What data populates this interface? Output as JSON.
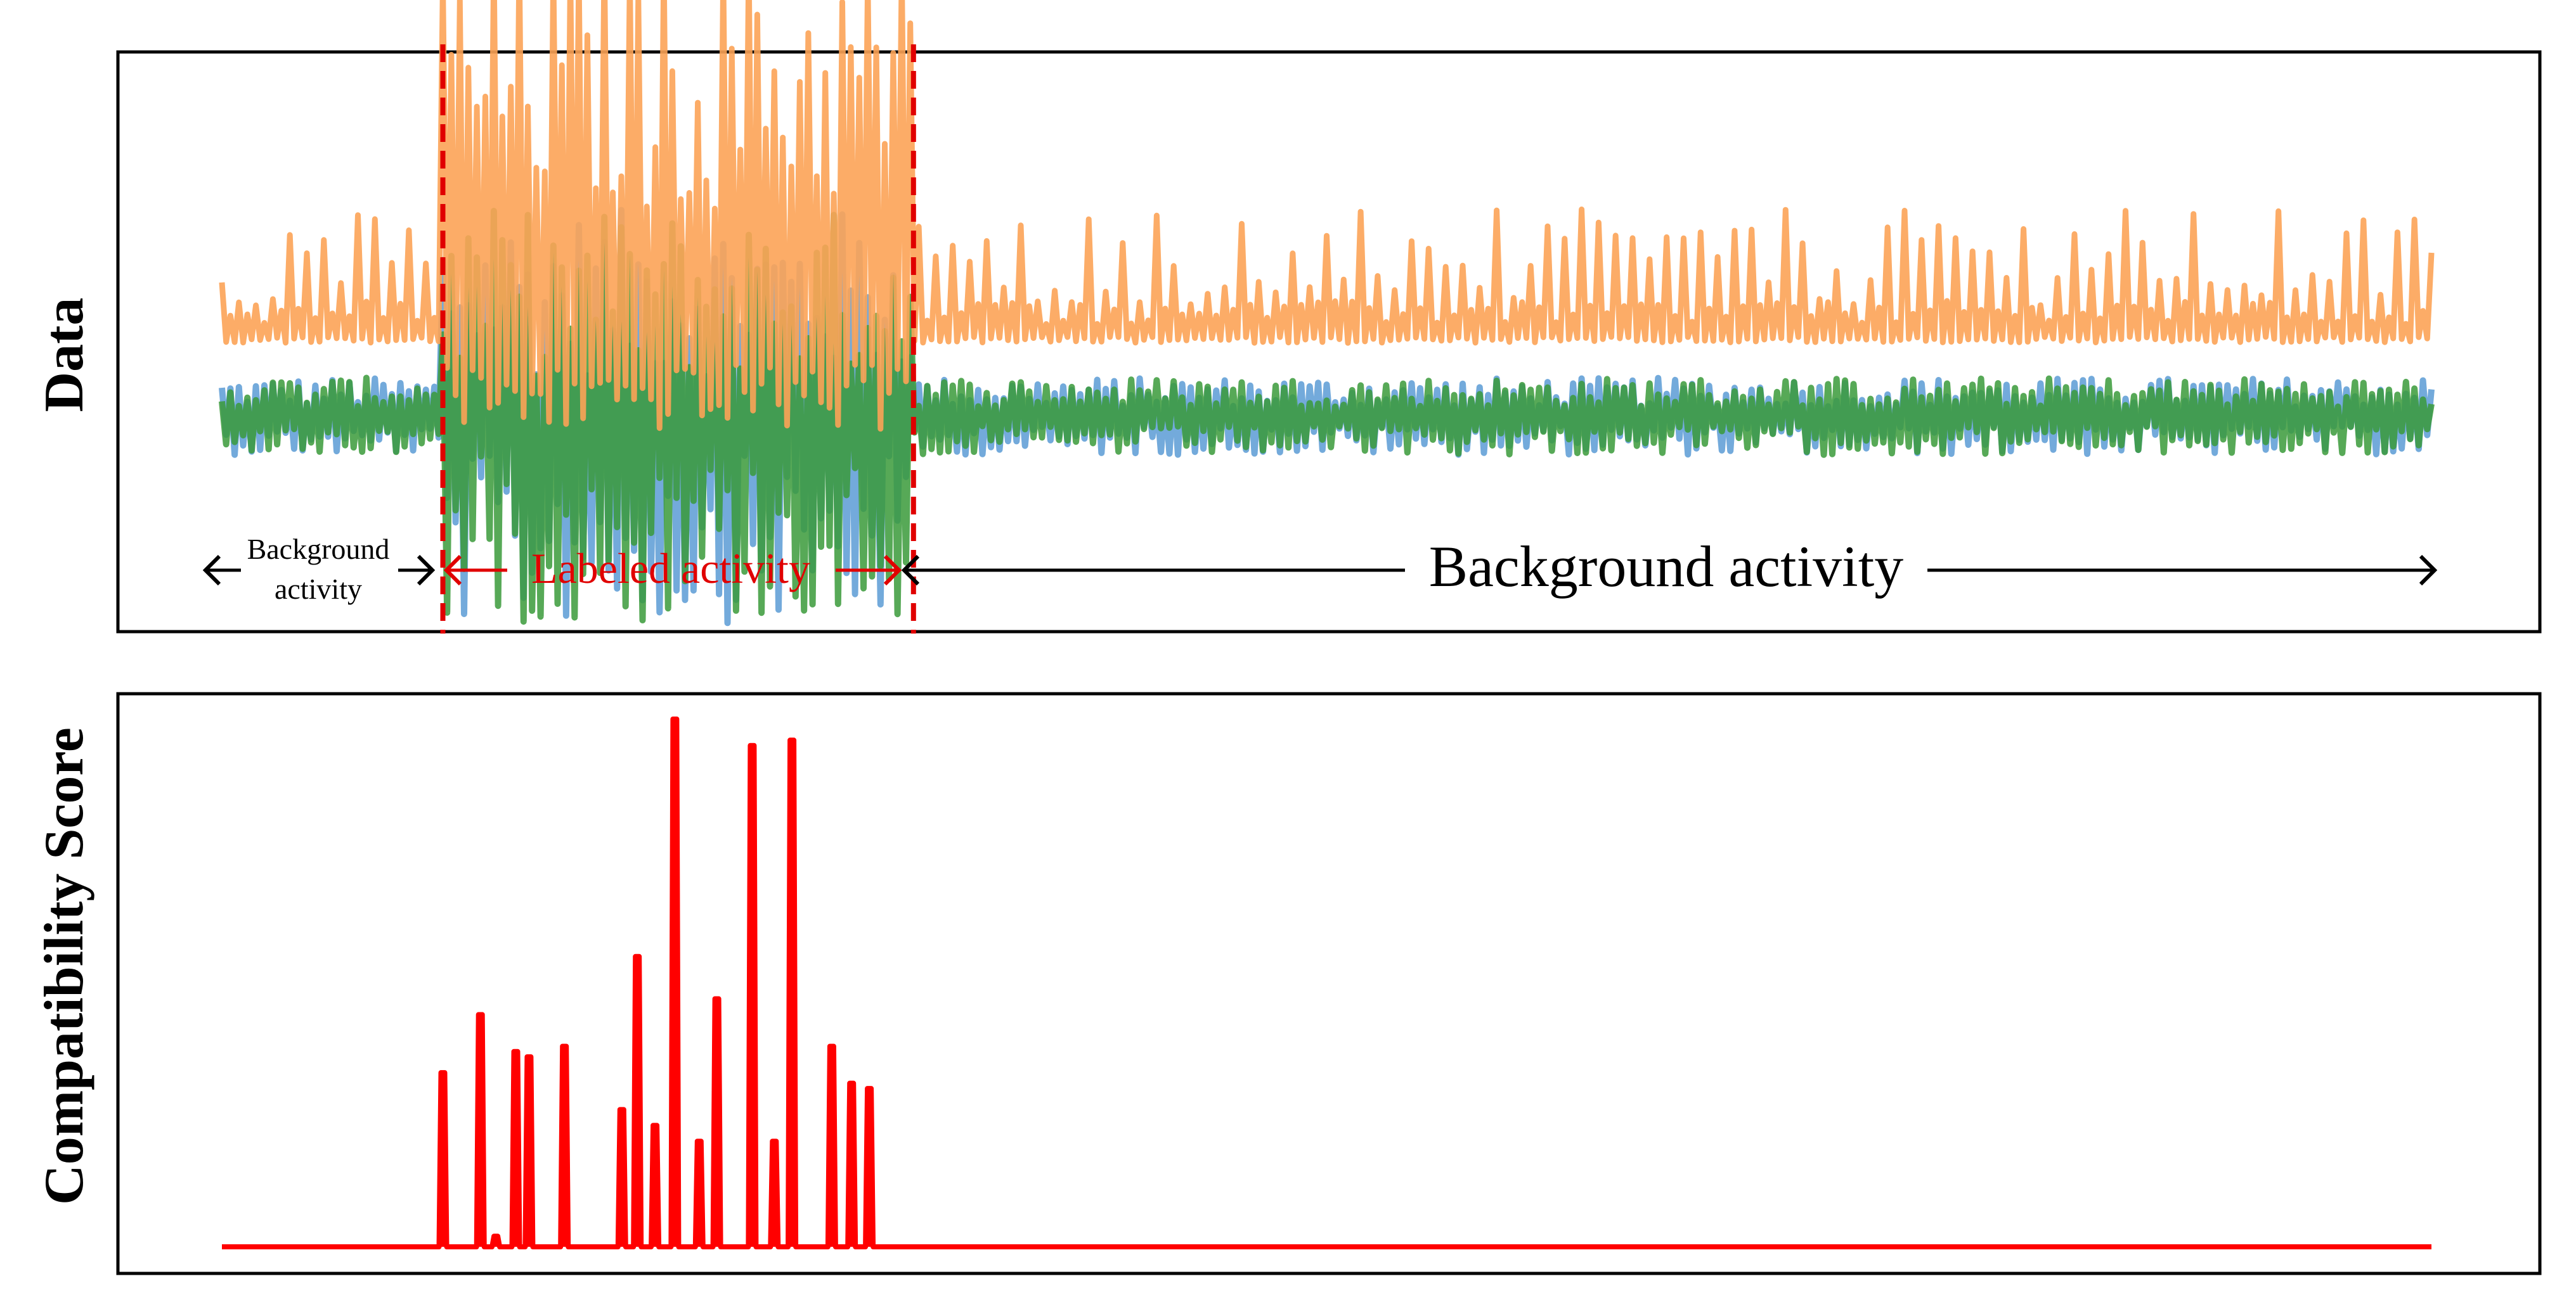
{
  "chart_data": [
    {
      "type": "line",
      "title": "",
      "xlabel": "",
      "ylabel": "Data",
      "axes_ticks": false,
      "grid": false,
      "legend": "none",
      "x_range": [
        0,
        100
      ],
      "series": [
        {
          "color": "#fca356",
          "baseline": 0.45,
          "description_values": [
            0.45,
            0.86,
            1.0,
            0.72,
            0.55
          ]
        },
        {
          "color": "#5b9bd5",
          "baseline": 0.28,
          "description_values": [
            0.28,
            0.52,
            0.6,
            0.35,
            0.3
          ]
        },
        {
          "color": "#3a9a3a",
          "baseline": 0.28,
          "description_values": [
            0.28,
            0.5,
            0.62,
            0.33,
            0.3
          ]
        }
      ],
      "labeled_region": {
        "start": 10,
        "end": 31.3,
        "color": "#e00000"
      },
      "annotations": {
        "left_background": [
          "Background",
          "activity"
        ],
        "labeled": "Labeled activity",
        "right_background": "Background activity"
      }
    },
    {
      "type": "line",
      "title": "",
      "xlabel": "",
      "ylabel": "Compatibility Score",
      "axes_ticks": false,
      "grid": false,
      "legend": "none",
      "x_range": [
        0,
        100
      ],
      "y_range": [
        0,
        1
      ],
      "line_color": "#ff0000",
      "peaks": [
        {
          "x": 10.0,
          "y": 0.33
        },
        {
          "x": 11.7,
          "y": 0.44
        },
        {
          "x": 12.4,
          "y": 0.02
        },
        {
          "x": 13.3,
          "y": 0.37
        },
        {
          "x": 13.9,
          "y": 0.36
        },
        {
          "x": 15.5,
          "y": 0.38
        },
        {
          "x": 18.1,
          "y": 0.26
        },
        {
          "x": 18.8,
          "y": 0.55
        },
        {
          "x": 19.6,
          "y": 0.23
        },
        {
          "x": 20.5,
          "y": 1.0
        },
        {
          "x": 21.6,
          "y": 0.2
        },
        {
          "x": 22.4,
          "y": 0.47
        },
        {
          "x": 24.0,
          "y": 0.95
        },
        {
          "x": 25.0,
          "y": 0.2
        },
        {
          "x": 25.8,
          "y": 0.96
        },
        {
          "x": 27.6,
          "y": 0.38
        },
        {
          "x": 28.5,
          "y": 0.31
        },
        {
          "x": 29.3,
          "y": 0.3
        }
      ]
    }
  ]
}
